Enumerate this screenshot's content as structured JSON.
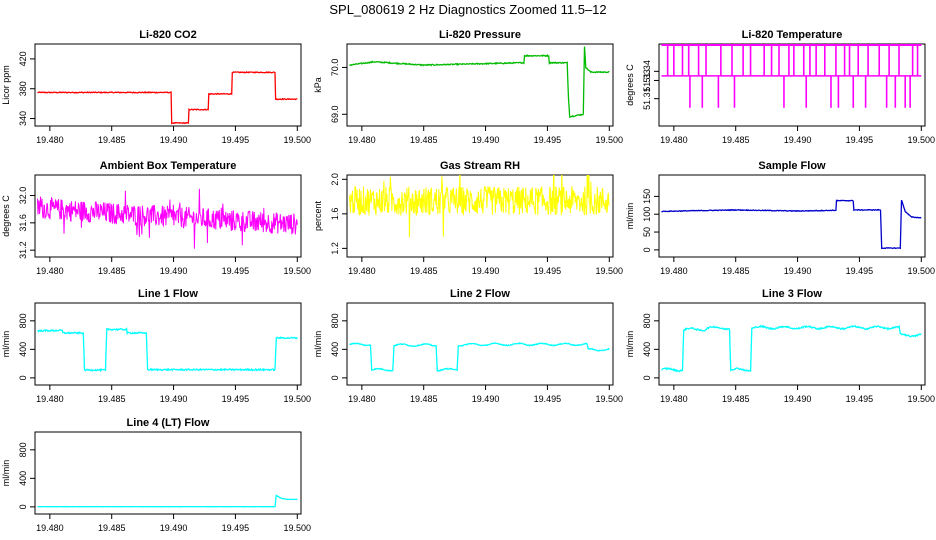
{
  "figure_title": "SPL_080619  2 Hz Diagnostics Zoomed 11.5–12",
  "colors": {
    "red": "#ff0000",
    "green": "#00bb00",
    "magenta": "#ff00ff",
    "yellow": "#ffff00",
    "blue": "#0000cc",
    "cyan": "#00ffff"
  },
  "chart_data": [
    {
      "type": "line",
      "title": "Li-820 CO2",
      "ylabel": "Licor ppm",
      "color_key": "red",
      "xlim": [
        19.4788,
        19.5003
      ],
      "ylim": [
        330,
        440
      ],
      "xticks": [
        "19.480",
        "19.485",
        "19.490",
        "19.495",
        "19.500"
      ],
      "yticks": [
        "340",
        "380",
        "420"
      ],
      "noise": 0.6,
      "x": [
        19.479,
        19.4898,
        19.4898,
        19.4912,
        19.4912,
        19.4928,
        19.4928,
        19.4947,
        19.4947,
        19.4982,
        19.4982,
        19.5
      ],
      "y": [
        375,
        375,
        334,
        334,
        352,
        352,
        373,
        373,
        402,
        402,
        366,
        366
      ]
    },
    {
      "type": "line",
      "title": "Li-820 Pressure",
      "ylabel": "kPa",
      "color_key": "green",
      "xlim": [
        19.4788,
        19.5003
      ],
      "ylim": [
        68.75,
        70.5
      ],
      "xticks": [
        "19.480",
        "19.485",
        "19.490",
        "19.495",
        "19.500"
      ],
      "yticks": [
        "69.0",
        "70.0"
      ],
      "noise": 0.012,
      "x": [
        19.479,
        19.481,
        19.485,
        19.4931,
        19.4931,
        19.4951,
        19.4951,
        19.4966,
        19.4967,
        19.4968,
        19.4979,
        19.498,
        19.4981,
        19.4985,
        19.5
      ],
      "y": [
        70.05,
        70.12,
        70.05,
        70.1,
        70.25,
        70.25,
        70.1,
        70.1,
        69.35,
        68.95,
        69.0,
        70.45,
        70.0,
        69.9,
        69.9
      ]
    },
    {
      "type": "step",
      "title": "Li-820 Temperature",
      "ylabel": "degrees C",
      "color_key": "magenta",
      "xlim": [
        19.4788,
        19.5003
      ],
      "ylim": [
        51.28,
        51.37
      ],
      "xticks": [
        "19.480",
        "19.485",
        "19.490",
        "19.495",
        "19.500"
      ],
      "yticks": [
        "51.31",
        "51.33",
        "51.34"
      ],
      "base": 51.335,
      "up": [
        19.4795,
        19.48,
        19.4807,
        19.4812,
        19.482,
        19.4826,
        19.4838,
        19.4847,
        19.4856,
        19.4862,
        19.4873,
        19.4879,
        19.4885,
        19.4893,
        19.4897,
        19.4905,
        19.491,
        19.4915,
        19.4922,
        19.4931,
        19.4938,
        19.4942,
        19.4949,
        19.4957,
        19.4966,
        19.4974,
        19.4982,
        19.4993,
        19.4997
      ],
      "down": [
        19.4813,
        19.4823,
        19.4836,
        19.4849,
        19.4889,
        19.4907,
        19.4927,
        19.4933,
        19.4945,
        19.4955,
        19.4972,
        19.4979,
        19.4987,
        19.4991
      ],
      "up_value": 51.37,
      "down_value": 51.3
    },
    {
      "type": "noise",
      "title": "Ambient Box Temperature",
      "ylabel": "degrees C",
      "color_key": "magenta",
      "xlim": [
        19.4788,
        19.5003
      ],
      "ylim": [
        31.1,
        32.3
      ],
      "xticks": [
        "19.480",
        "19.485",
        "19.490",
        "19.495",
        "19.500"
      ],
      "yticks": [
        "31.2",
        "31.6",
        "32.0"
      ],
      "x": [
        19.479,
        19.4865,
        19.5
      ],
      "y": [
        31.82,
        31.72,
        31.58
      ],
      "amp": 0.16
    },
    {
      "type": "noise",
      "title": "Gas Stream RH",
      "ylabel": "percent",
      "color_key": "yellow",
      "xlim": [
        19.4788,
        19.5003
      ],
      "ylim": [
        1.1,
        2.05
      ],
      "xticks": [
        "19.480",
        "19.485",
        "19.490",
        "19.495",
        "19.500"
      ],
      "yticks": [
        "1.2",
        "1.6",
        "2.0"
      ],
      "x": [
        19.479,
        19.5
      ],
      "y": [
        1.75,
        1.75
      ],
      "amp": 0.17
    },
    {
      "type": "line",
      "title": "Sample Flow",
      "ylabel": "ml/min",
      "color_key": "blue",
      "xlim": [
        19.4788,
        19.5003
      ],
      "ylim": [
        -20,
        210
      ],
      "xticks": [
        "19.480",
        "19.485",
        "19.490",
        "19.495",
        "19.500"
      ],
      "yticks": [
        "0",
        "50",
        "100",
        "150"
      ],
      "noise": 1.0,
      "x": [
        19.479,
        19.482,
        19.485,
        19.49,
        19.4931,
        19.4931,
        19.4945,
        19.4945,
        19.4967,
        19.4968,
        19.4983,
        19.4984,
        19.4987,
        19.4992,
        19.5
      ],
      "y": [
        108,
        110,
        112,
        109,
        111,
        138,
        138,
        112,
        112,
        5,
        5,
        140,
        108,
        92,
        90
      ]
    },
    {
      "type": "line",
      "title": "Line 1 Flow",
      "ylabel": "ml/min",
      "color_key": "cyan",
      "xlim": [
        19.4788,
        19.5003
      ],
      "ylim": [
        -100,
        1050
      ],
      "xticks": [
        "19.480",
        "19.485",
        "19.490",
        "19.495",
        "19.500"
      ],
      "yticks": [
        "0",
        "400",
        "800"
      ],
      "noise": 10,
      "x": [
        19.479,
        19.481,
        19.481,
        19.4827,
        19.4828,
        19.4845,
        19.4846,
        19.4862,
        19.4862,
        19.4878,
        19.4879,
        19.4982,
        19.4983,
        19.5
      ],
      "y": [
        660,
        665,
        630,
        630,
        110,
        110,
        680,
        680,
        630,
        630,
        115,
        115,
        560,
        560
      ]
    },
    {
      "type": "line",
      "title": "Line 2 Flow",
      "ylabel": "ml/min",
      "color_key": "cyan",
      "xlim": [
        19.4788,
        19.5003
      ],
      "ylim": [
        -100,
        1050
      ],
      "xticks": [
        "19.480",
        "19.485",
        "19.490",
        "19.495",
        "19.500"
      ],
      "yticks": [
        "0",
        "400",
        "800"
      ],
      "noise": 6,
      "x": [
        19.479,
        19.4807,
        19.4808,
        19.4825,
        19.4826,
        19.486,
        19.4861,
        19.4877,
        19.4878,
        19.491,
        19.495,
        19.4982,
        19.4983,
        19.5
      ],
      "y": [
        470,
        470,
        115,
        115,
        460,
        460,
        115,
        115,
        465,
        470,
        470,
        470,
        395,
        395
      ],
      "wave": 14
    },
    {
      "type": "line",
      "title": "Line 3 Flow",
      "ylabel": "ml/min",
      "color_key": "cyan",
      "xlim": [
        19.4788,
        19.5003
      ],
      "ylim": [
        -100,
        1050
      ],
      "xticks": [
        "19.480",
        "19.485",
        "19.490",
        "19.495",
        "19.500"
      ],
      "yticks": [
        "0",
        "400",
        "800"
      ],
      "noise": 10,
      "x": [
        19.479,
        19.4807,
        19.4808,
        19.4825,
        19.4827,
        19.4845,
        19.4846,
        19.4862,
        19.4863,
        19.4982,
        19.4983,
        19.5
      ],
      "y": [
        115,
        115,
        680,
        680,
        700,
        700,
        115,
        115,
        705,
        705,
        600,
        600
      ],
      "wave": 16
    },
    {
      "type": "line",
      "title": "Line 4 (LT) Flow",
      "ylabel": "ml/min",
      "color_key": "cyan",
      "xlim": [
        19.4788,
        19.5003
      ],
      "ylim": [
        -100,
        1050
      ],
      "xticks": [
        "19.480",
        "19.485",
        "19.490",
        "19.495",
        "19.500"
      ],
      "yticks": [
        "0",
        "400",
        "800"
      ],
      "noise": 1.5,
      "x": [
        19.479,
        19.4982,
        19.4983,
        19.4987,
        19.4992,
        19.5
      ],
      "y": [
        3,
        3,
        160,
        120,
        105,
        105
      ]
    }
  ]
}
